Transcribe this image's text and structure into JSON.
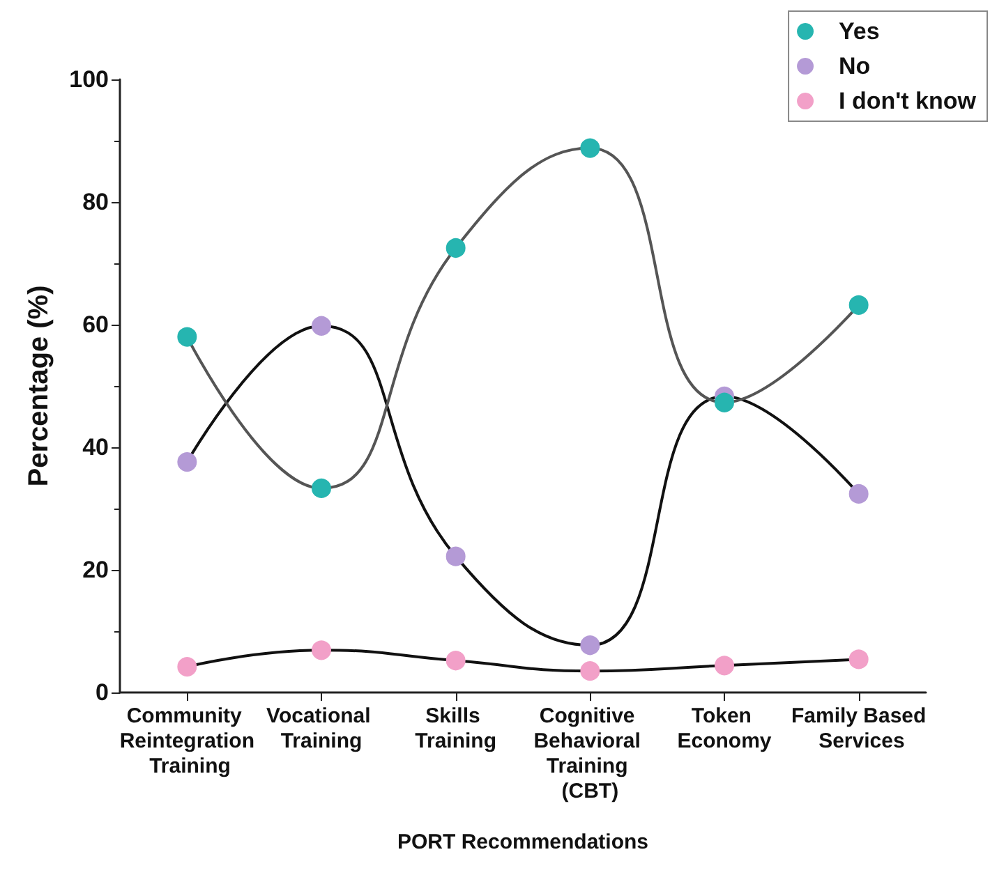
{
  "chart_data": {
    "type": "line",
    "xlabel": "PORT Recommendations",
    "ylabel": "Percentage (%)",
    "categories": [
      "Community Reintegration Training",
      "Vocational Training",
      "Skills Training",
      "Cognitive Behavioral Training (CBT)",
      "Token Economy",
      "Family Based Services"
    ],
    "series": [
      {
        "name": "Yes",
        "color": "#26b5b0",
        "values": [
          58.0,
          33.3,
          72.5,
          88.8,
          47.3,
          63.2
        ]
      },
      {
        "name": "No",
        "color": "#b49ad6",
        "values": [
          37.6,
          59.8,
          22.2,
          7.7,
          48.3,
          32.4
        ]
      },
      {
        "name": "I don't know",
        "color": "#f2a0c8",
        "values": [
          4.2,
          6.9,
          5.2,
          3.5,
          4.4,
          5.4
        ]
      }
    ],
    "ylim": [
      0,
      100
    ],
    "yticks": [
      0,
      20,
      40,
      60,
      80,
      100
    ],
    "grid": false,
    "legend": "top right",
    "marker": "circle",
    "line_style": "solid"
  }
}
